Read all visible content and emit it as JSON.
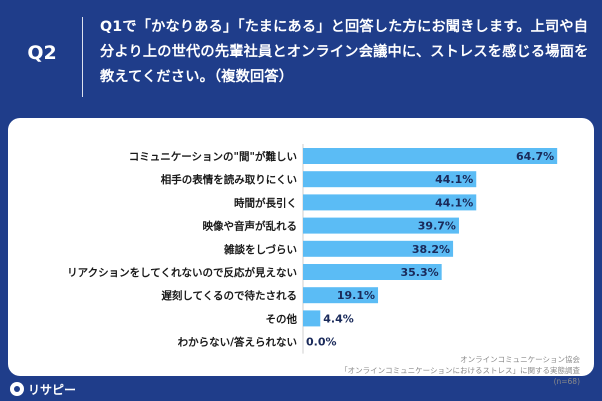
{
  "header": {
    "question_label": "Q2",
    "question_text": "Q1で「かなりある」「たまにある」と回答した方にお聞きします。上司や自分より上の世代の先輩社員とオンライン会議中に、ストレスを感じる場面を教えてください。（複数回答）"
  },
  "chart_data": {
    "type": "bar",
    "orientation": "horizontal",
    "categories": [
      "コミュニケーションの\"間\"が難しい",
      "相手の表情を読み取りにくい",
      "時間が長引く",
      "映像や音声が乱れる",
      "雑談をしづらい",
      "リアクションをしてくれないので反応が見えない",
      "遅刻してくるので待たされる",
      "その他",
      "わからない/答えられない"
    ],
    "values": [
      64.7,
      44.1,
      44.1,
      39.7,
      38.2,
      35.3,
      19.1,
      4.4,
      0.0
    ],
    "value_labels": [
      "64.7%",
      "44.1%",
      "44.1%",
      "39.7%",
      "38.2%",
      "35.3%",
      "19.1%",
      "4.4%",
      "0.0%"
    ],
    "xlim": [
      0,
      70
    ],
    "bar_color": "#5bbcf5",
    "grid": false,
    "legend": "none"
  },
  "source": {
    "line1": "オンラインコミュニケーション協会",
    "line2": "「オンラインコミュニケーションにおけるストレス」に関する実態調査",
    "line3": "(n=68)"
  },
  "logo": {
    "text": "リサピー",
    "icon": "pin-icon"
  },
  "colors": {
    "background": "#1f3d8a",
    "card": "#ffffff",
    "bar": "#5bbcf5"
  }
}
